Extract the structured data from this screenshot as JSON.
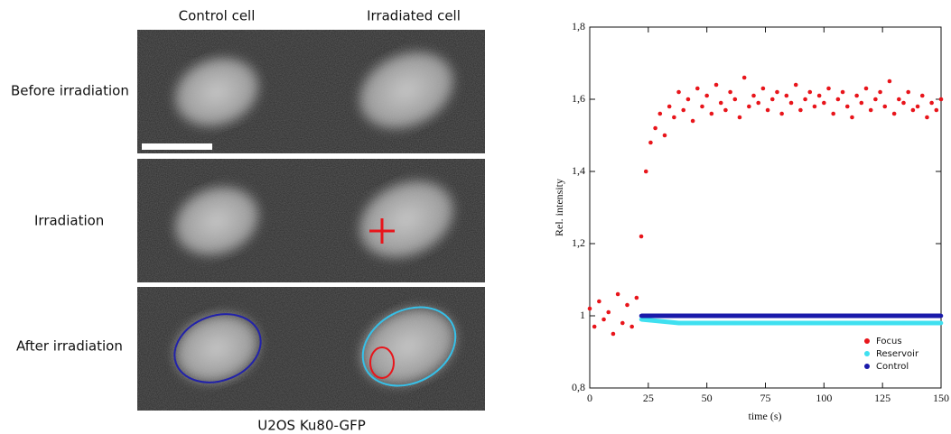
{
  "panels": {
    "columns": [
      "Control cell",
      "Irradiated cell"
    ],
    "rows": [
      "Before irradiation",
      "Irradiation",
      "After irradiation"
    ],
    "caption": "U2OS Ku80-GFP"
  },
  "chart_data": {
    "type": "scatter",
    "xlabel": "time (s)",
    "ylabel": "Rel. intensity",
    "xlim": [
      0,
      150
    ],
    "xticks": [
      0,
      25,
      50,
      75,
      100,
      125,
      150
    ],
    "ylim": [
      0.8,
      1.8
    ],
    "yticks": [
      {
        "value": 0.8,
        "label": "0,8"
      },
      1,
      {
        "value": 1.2,
        "label": "1,2"
      },
      {
        "value": 1.4,
        "label": "1,4"
      },
      {
        "value": 1.6,
        "label": "1,6"
      },
      {
        "value": 1.8,
        "label": "1,8"
      }
    ],
    "legend": "lower right",
    "series": [
      {
        "name": "Focus",
        "color": "#e8151b",
        "x": [
          0,
          2,
          4,
          6,
          8,
          10,
          12,
          14,
          16,
          18,
          20,
          22,
          24,
          26,
          28,
          30,
          32,
          34,
          36,
          38,
          40,
          42,
          44,
          46,
          48,
          50,
          52,
          54,
          56,
          58,
          60,
          62,
          64,
          66,
          68,
          70,
          72,
          74,
          76,
          78,
          80,
          82,
          84,
          86,
          88,
          90,
          92,
          94,
          96,
          98,
          100,
          102,
          104,
          106,
          108,
          110,
          112,
          114,
          116,
          118,
          120,
          122,
          124,
          126,
          128,
          130,
          132,
          134,
          136,
          138,
          140,
          142,
          144,
          146,
          148,
          150
        ],
        "values": [
          1.02,
          0.97,
          1.04,
          0.99,
          1.01,
          0.95,
          1.06,
          0.98,
          1.03,
          0.97,
          1.05,
          1.22,
          1.4,
          1.48,
          1.52,
          1.56,
          1.5,
          1.58,
          1.55,
          1.62,
          1.57,
          1.6,
          1.54,
          1.63,
          1.58,
          1.61,
          1.56,
          1.64,
          1.59,
          1.57,
          1.62,
          1.6,
          1.55,
          1.66,
          1.58,
          1.61,
          1.59,
          1.63,
          1.57,
          1.6,
          1.62,
          1.56,
          1.61,
          1.59,
          1.64,
          1.57,
          1.6,
          1.62,
          1.58,
          1.61,
          1.59,
          1.63,
          1.56,
          1.6,
          1.62,
          1.58,
          1.55,
          1.61,
          1.59,
          1.63,
          1.57,
          1.6,
          1.62,
          1.58,
          1.65,
          1.56,
          1.6,
          1.59,
          1.62,
          1.57,
          1.58,
          1.61,
          1.55,
          1.59,
          1.57,
          1.6
        ]
      },
      {
        "name": "Reservoir",
        "color": "#3fe0f0",
        "x": [
          22,
          30,
          38,
          46,
          54,
          62,
          70,
          78,
          86,
          94,
          102,
          110,
          118,
          126,
          134,
          142,
          150
        ],
        "values": [
          0.99,
          0.985,
          0.98,
          0.98,
          0.98,
          0.98,
          0.98,
          0.98,
          0.98,
          0.98,
          0.98,
          0.98,
          0.98,
          0.98,
          0.98,
          0.98,
          0.98
        ]
      },
      {
        "name": "Control",
        "color": "#1a1aaa",
        "x": [
          22,
          30,
          38,
          46,
          54,
          62,
          70,
          78,
          86,
          94,
          102,
          110,
          118,
          126,
          134,
          142,
          150
        ],
        "values": [
          1,
          1,
          1,
          1,
          1,
          1,
          1,
          1,
          1,
          1,
          1,
          1,
          1,
          1,
          1,
          1,
          1
        ]
      }
    ]
  }
}
